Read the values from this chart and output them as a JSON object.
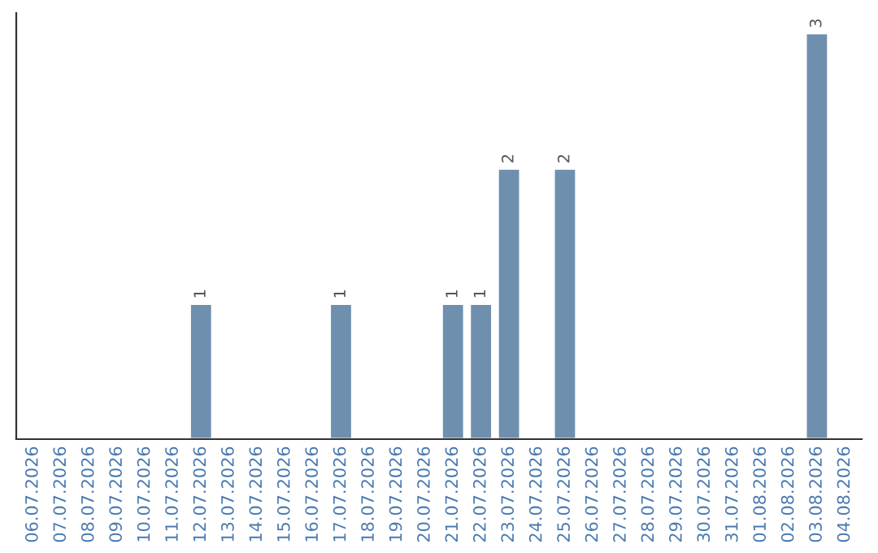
{
  "chart_data": {
    "type": "bar",
    "categories": [
      "06.07.2026",
      "07.07.2026",
      "08.07.2026",
      "09.07.2026",
      "10.07.2026",
      "11.07.2026",
      "12.07.2026",
      "13.07.2026",
      "14.07.2026",
      "15.07.2026",
      "16.07.2026",
      "17.07.2026",
      "18.07.2026",
      "19.07.2026",
      "20.07.2026",
      "21.07.2026",
      "22.07.2026",
      "23.07.2026",
      "24.07.2026",
      "25.07.2026",
      "26.07.2026",
      "27.07.2026",
      "28.07.2026",
      "29.07.2026",
      "30.07.2026",
      "31.07.2026",
      "01.08.2026",
      "02.08.2026",
      "03.08.2026",
      "04.08.2026"
    ],
    "values": [
      null,
      null,
      null,
      null,
      null,
      null,
      1,
      null,
      null,
      null,
      null,
      1,
      null,
      null,
      null,
      1,
      1,
      2,
      null,
      2,
      null,
      null,
      null,
      null,
      null,
      null,
      null,
      null,
      3,
      null
    ],
    "color": "#6f8fae",
    "data_labels": true,
    "grid": false,
    "tick_labels": "x"
  }
}
